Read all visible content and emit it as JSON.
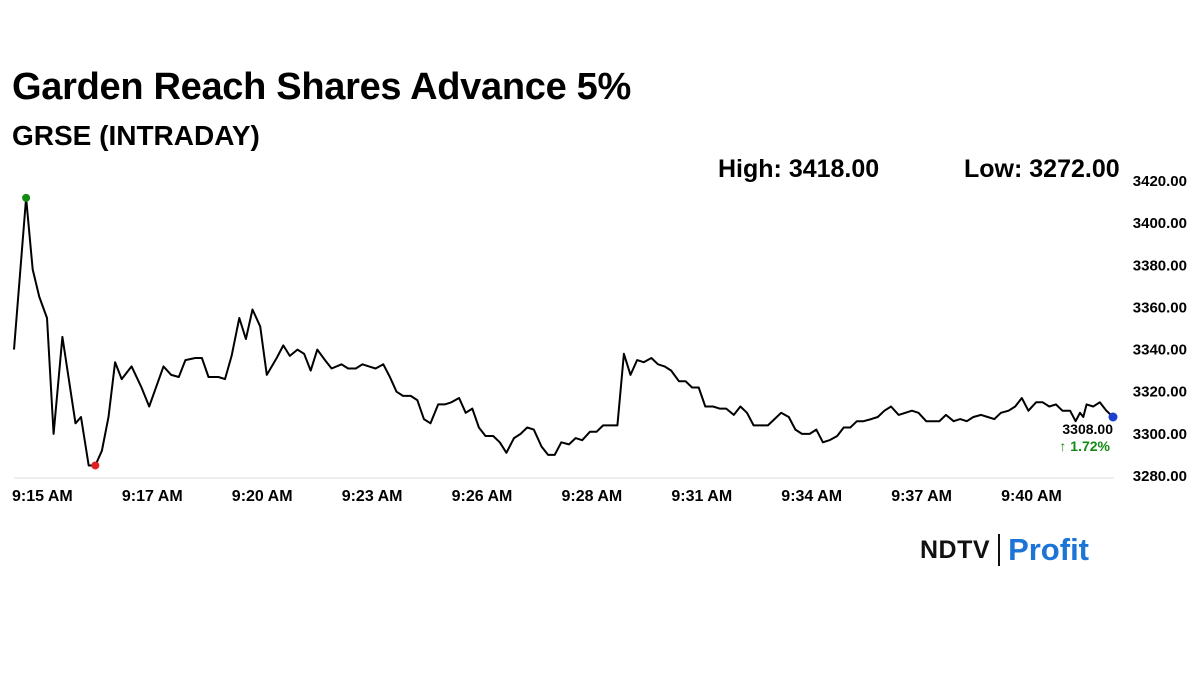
{
  "header": {
    "title": "Garden Reach Shares Advance 5%",
    "subtitle": "GRSE (INTRADAY)",
    "high_text": "High: 3418.00",
    "low_text": "Low: 3272.00"
  },
  "last": {
    "price_text": "3308.00",
    "change_text": "↑ 1.72%"
  },
  "logo": {
    "ndtv": "NDTV",
    "profit": "Profit"
  },
  "colors": {
    "line": "#000000",
    "high_marker": "#138a13",
    "low_marker": "#e02020",
    "last_marker": "#1f3fd0",
    "change_up": "#138a13",
    "profit": "#1b74d6"
  },
  "chart_data": {
    "type": "line",
    "title": "GRSE (INTRADAY)",
    "xlabel": "",
    "ylabel": "",
    "ylim": [
      3272,
      3420
    ],
    "yticks": [
      3280,
      3300,
      3320,
      3340,
      3360,
      3380,
      3400,
      3420
    ],
    "ytick_labels": [
      "3280.00",
      "3300.00",
      "3320.00",
      "3340.00",
      "3360.00",
      "3380.00",
      "3400.00",
      "3420.00"
    ],
    "xticks": [
      {
        "x": 0,
        "label": "9:15 AM"
      },
      {
        "x": 10,
        "label": "9:17 AM"
      },
      {
        "x": 20,
        "label": "9:20 AM"
      },
      {
        "x": 30,
        "label": "9:23 AM"
      },
      {
        "x": 40,
        "label": "9:26 AM"
      },
      {
        "x": 50,
        "label": "9:28 AM"
      },
      {
        "x": 60,
        "label": "9:31 AM"
      },
      {
        "x": 70,
        "label": "9:34 AM"
      },
      {
        "x": 80,
        "label": "9:37 AM"
      },
      {
        "x": 90,
        "label": "9:40 AM"
      }
    ],
    "x_max": 100,
    "grid": false,
    "series": [
      {
        "values": [
          [
            0,
            3340
          ],
          [
            1.1,
            3412
          ],
          [
            1.7,
            3378
          ],
          [
            2.3,
            3365
          ],
          [
            3,
            3355
          ],
          [
            3.6,
            3300
          ],
          [
            4.4,
            3346
          ],
          [
            5.6,
            3305
          ],
          [
            6.1,
            3308
          ],
          [
            6.8,
            3285
          ],
          [
            7.4,
            3285
          ],
          [
            8,
            3292
          ],
          [
            8.6,
            3308
          ],
          [
            9.2,
            3334
          ],
          [
            9.8,
            3326
          ],
          [
            10.7,
            3332
          ],
          [
            11.6,
            3322
          ],
          [
            12.3,
            3313
          ],
          [
            13.6,
            3332
          ],
          [
            14.3,
            3328
          ],
          [
            15,
            3327
          ],
          [
            15.6,
            3335
          ],
          [
            16.5,
            3336
          ],
          [
            17.1,
            3336
          ],
          [
            17.7,
            3327
          ],
          [
            18.6,
            3327
          ],
          [
            19.2,
            3326
          ],
          [
            19.8,
            3337
          ],
          [
            20.5,
            3355
          ],
          [
            21.1,
            3345
          ],
          [
            21.7,
            3359
          ],
          [
            22.4,
            3351
          ],
          [
            23,
            3328
          ],
          [
            23.9,
            3336
          ],
          [
            24.5,
            3342
          ],
          [
            25.1,
            3337
          ],
          [
            25.8,
            3340
          ],
          [
            26.4,
            3338
          ],
          [
            27,
            3330
          ],
          [
            27.6,
            3340
          ],
          [
            28.3,
            3335
          ],
          [
            28.9,
            3331
          ],
          [
            29.8,
            3333
          ],
          [
            30.4,
            3331
          ],
          [
            31.1,
            3331
          ],
          [
            31.7,
            3333
          ],
          [
            32.3,
            3332
          ],
          [
            32.9,
            3331
          ],
          [
            33.6,
            3333
          ],
          [
            34.2,
            3327
          ],
          [
            34.8,
            3320
          ],
          [
            35.4,
            3318
          ],
          [
            36.1,
            3318
          ],
          [
            36.7,
            3316
          ],
          [
            37.3,
            3307
          ],
          [
            37.9,
            3305
          ],
          [
            38.6,
            3314
          ],
          [
            39.2,
            3314
          ],
          [
            39.8,
            3315
          ],
          [
            40.5,
            3317
          ],
          [
            41.1,
            3310
          ],
          [
            41.7,
            3312
          ],
          [
            42.3,
            3303
          ],
          [
            42.9,
            3299
          ],
          [
            43.6,
            3299
          ],
          [
            44.2,
            3296
          ],
          [
            44.8,
            3291
          ],
          [
            45.5,
            3298
          ],
          [
            46.1,
            3300
          ],
          [
            46.7,
            3303
          ],
          [
            47.3,
            3302
          ],
          [
            48,
            3294
          ],
          [
            48.6,
            3290
          ],
          [
            49.2,
            3290
          ],
          [
            49.8,
            3296
          ],
          [
            50.5,
            3295
          ],
          [
            51.1,
            3298
          ],
          [
            51.7,
            3297
          ],
          [
            52.4,
            3301
          ],
          [
            53,
            3301
          ],
          [
            53.6,
            3304
          ],
          [
            54.2,
            3304
          ],
          [
            54.9,
            3304
          ],
          [
            55.5,
            3338
          ],
          [
            56.1,
            3328
          ],
          [
            56.7,
            3335
          ],
          [
            57.3,
            3334
          ],
          [
            58,
            3336
          ],
          [
            58.6,
            3333
          ],
          [
            59.2,
            3332
          ],
          [
            59.8,
            3330
          ],
          [
            60.5,
            3325
          ],
          [
            61.1,
            3325
          ],
          [
            61.7,
            3322
          ],
          [
            62.3,
            3322
          ],
          [
            62.9,
            3313
          ],
          [
            63.6,
            3313
          ],
          [
            64.2,
            3312
          ],
          [
            64.8,
            3312
          ],
          [
            65.5,
            3309
          ],
          [
            66.1,
            3313
          ],
          [
            66.7,
            3310
          ],
          [
            67.3,
            3304
          ],
          [
            68,
            3304
          ],
          [
            68.6,
            3304
          ],
          [
            69.2,
            3307
          ],
          [
            69.8,
            3310
          ],
          [
            70.5,
            3308
          ],
          [
            71.1,
            3302
          ],
          [
            71.7,
            3300
          ],
          [
            72.4,
            3300
          ],
          [
            73,
            3302
          ],
          [
            73.6,
            3296
          ],
          [
            74.2,
            3297
          ],
          [
            74.9,
            3299
          ],
          [
            75.5,
            3303
          ],
          [
            76.1,
            3303
          ],
          [
            76.7,
            3306
          ],
          [
            77.3,
            3306
          ],
          [
            78,
            3307
          ],
          [
            78.6,
            3308
          ],
          [
            79.2,
            3311
          ],
          [
            79.8,
            3313
          ],
          [
            80.5,
            3309
          ],
          [
            81.1,
            3310
          ],
          [
            81.7,
            3311
          ],
          [
            82.3,
            3310
          ],
          [
            83,
            3306
          ],
          [
            83.6,
            3306
          ],
          [
            84.2,
            3306
          ],
          [
            84.8,
            3309
          ],
          [
            85.5,
            3306
          ],
          [
            86.1,
            3307
          ],
          [
            86.7,
            3306
          ],
          [
            87.3,
            3308
          ],
          [
            88,
            3309
          ],
          [
            88.6,
            3308
          ],
          [
            89.2,
            3307
          ],
          [
            89.8,
            3310
          ],
          [
            90.5,
            3311
          ],
          [
            91.1,
            3313
          ],
          [
            91.7,
            3317
          ],
          [
            92.3,
            3311
          ],
          [
            93,
            3315
          ],
          [
            93.6,
            3315
          ],
          [
            94.2,
            3313
          ],
          [
            94.8,
            3314
          ],
          [
            95.4,
            3311
          ],
          [
            96.1,
            3311
          ],
          [
            96.6,
            3306
          ],
          [
            97,
            3310
          ],
          [
            97.3,
            3308
          ],
          [
            97.6,
            3314
          ],
          [
            98.2,
            3313
          ],
          [
            98.8,
            3315
          ],
          [
            99.4,
            3311
          ],
          [
            100,
            3308
          ]
        ]
      }
    ],
    "markers": {
      "high": {
        "x": 1.1,
        "y": 3412
      },
      "low": {
        "x": 7.4,
        "y": 3285
      },
      "last": {
        "x": 100,
        "y": 3308
      }
    }
  }
}
